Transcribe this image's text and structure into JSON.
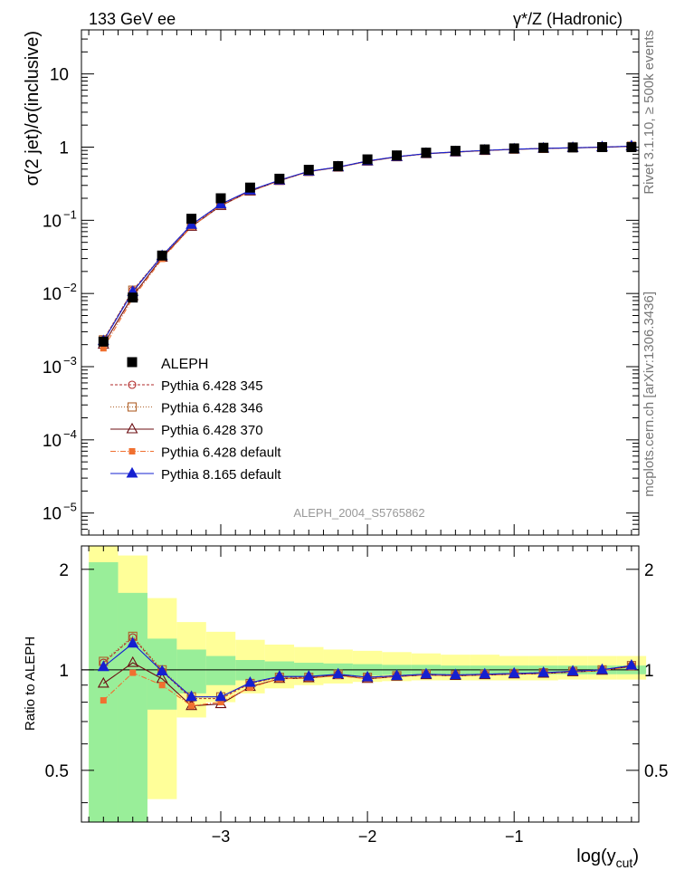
{
  "chart_data": {
    "type": "line",
    "header_left": "133 GeV ee",
    "header_right": "γ*/Z (Hadronic)",
    "side_label_1": "Rivet 3.1.10, ≥ 500k events",
    "side_label_2": "mcplots.cern.ch [arXiv:1306.3436]",
    "analysis_id": "ALEPH_2004_S5765862",
    "ylabel": "σ(2 jet)/σ(inclusive)",
    "xlabel": "log(y_cut)",
    "xlabel_main": "log(y",
    "xlabel_sub": "cut",
    "xlabel_close": ")",
    "ratio_ylabel": "Ratio to ALEPH",
    "xlim": [
      -3.95,
      -0.15
    ],
    "ylim": [
      5e-06,
      40
    ],
    "ratio_ylim": [
      0.35,
      2.35
    ],
    "x_ticks": [
      -3,
      -2,
      -1
    ],
    "x_tick_labels": [
      "−3",
      "−2",
      "−1"
    ],
    "y_ticks": [
      {
        "value": 1e-05,
        "base": "10",
        "exp": "−5"
      },
      {
        "value": 0.0001,
        "base": "10",
        "exp": "−4"
      },
      {
        "value": 0.001,
        "base": "10",
        "exp": "−3"
      },
      {
        "value": 0.01,
        "base": "10",
        "exp": "−2"
      },
      {
        "value": 0.1,
        "base": "10",
        "exp": "−1"
      },
      {
        "value": 1,
        "base": "1",
        "exp": ""
      },
      {
        "value": 10,
        "base": "10",
        "exp": ""
      }
    ],
    "ratio_ticks": [
      0.5,
      1,
      2
    ],
    "ratio_tick_labels": [
      "0.5",
      "1",
      "2"
    ],
    "x": [
      -3.8,
      -3.6,
      -3.4,
      -3.2,
      -3.0,
      -2.8,
      -2.6,
      -2.4,
      -2.2,
      -2.0,
      -1.8,
      -1.6,
      -1.4,
      -1.2,
      -1.0,
      -0.8,
      -0.6,
      -0.4,
      -0.2
    ],
    "x_edges": [
      -3.9,
      -3.7,
      -3.5,
      -3.3,
      -3.1,
      -2.9,
      -2.7,
      -2.5,
      -2.3,
      -2.1,
      -1.9,
      -1.7,
      -1.5,
      -1.3,
      -1.1,
      -0.9,
      -0.7,
      -0.5,
      -0.3,
      -0.1
    ],
    "data": {
      "name": "ALEPH",
      "values": [
        0.0022,
        0.0088,
        0.033,
        0.105,
        0.2,
        0.28,
        0.37,
        0.49,
        0.55,
        0.68,
        0.77,
        0.84,
        0.89,
        0.93,
        0.96,
        0.98,
        0.99,
        1.0,
        1.0
      ],
      "band_inner": [
        [
          0.0,
          2.1
        ],
        [
          0.3,
          1.7
        ],
        [
          0.76,
          1.24
        ],
        [
          0.85,
          1.15
        ],
        [
          0.9,
          1.1
        ],
        [
          0.93,
          1.07
        ],
        [
          0.94,
          1.06
        ],
        [
          0.95,
          1.05
        ],
        [
          0.955,
          1.045
        ],
        [
          0.96,
          1.04
        ],
        [
          0.965,
          1.035
        ],
        [
          0.965,
          1.035
        ],
        [
          0.97,
          1.03
        ],
        [
          0.97,
          1.03
        ],
        [
          0.97,
          1.03
        ],
        [
          0.97,
          1.03
        ],
        [
          0.97,
          1.03
        ],
        [
          0.97,
          1.03
        ],
        [
          0.97,
          1.03
        ]
      ],
      "band_outer": [
        [
          0.0,
          2.35
        ],
        [
          0.0,
          2.2
        ],
        [
          0.41,
          1.64
        ],
        [
          0.72,
          1.39
        ],
        [
          0.8,
          1.3
        ],
        [
          0.85,
          1.23
        ],
        [
          0.88,
          1.19
        ],
        [
          0.9,
          1.17
        ],
        [
          0.91,
          1.15
        ],
        [
          0.92,
          1.14
        ],
        [
          0.925,
          1.13
        ],
        [
          0.93,
          1.12
        ],
        [
          0.93,
          1.11
        ],
        [
          0.93,
          1.11
        ],
        [
          0.93,
          1.1
        ],
        [
          0.93,
          1.1
        ],
        [
          0.935,
          1.1
        ],
        [
          0.935,
          1.1
        ],
        [
          0.935,
          1.1
        ]
      ]
    },
    "series": [
      {
        "name": "Pythia 6.428 345",
        "color": "#b22a2a",
        "marker": "open-circle",
        "dash": "3,2",
        "ratio": [
          1.05,
          1.25,
          0.99,
          0.82,
          0.82,
          0.91,
          0.95,
          0.95,
          0.97,
          0.95,
          0.96,
          0.97,
          0.965,
          0.97,
          0.975,
          0.98,
          0.99,
          1.0,
          1.03
        ]
      },
      {
        "name": "Pythia 6.428 346",
        "color": "#b0622a",
        "marker": "open-square",
        "dash": "1,2",
        "ratio": [
          1.06,
          1.26,
          1.0,
          0.83,
          0.83,
          0.91,
          0.95,
          0.95,
          0.97,
          0.95,
          0.96,
          0.97,
          0.965,
          0.97,
          0.975,
          0.98,
          0.99,
          1.0,
          1.03
        ]
      },
      {
        "name": "Pythia 6.428 370",
        "color": "#6b0d12",
        "marker": "open-triangle",
        "dash": "",
        "ratio": [
          0.91,
          1.05,
          0.94,
          0.78,
          0.79,
          0.89,
          0.94,
          0.945,
          0.965,
          0.94,
          0.955,
          0.965,
          0.96,
          0.965,
          0.97,
          0.975,
          0.985,
          0.995,
          1.025
        ]
      },
      {
        "name": "Pythia 6.428 default",
        "color": "#f07030",
        "marker": "filled-square",
        "dash": "6,2,1,2",
        "ratio": [
          0.81,
          0.98,
          0.9,
          0.78,
          0.8,
          0.885,
          0.94,
          0.945,
          0.96,
          0.94,
          0.955,
          0.965,
          0.96,
          0.965,
          0.97,
          0.975,
          0.985,
          0.995,
          1.02
        ]
      },
      {
        "name": "Pythia 8.165 default",
        "color": "#1520d0",
        "marker": "filled-triangle",
        "dash": "",
        "ratio": [
          1.02,
          1.2,
          0.99,
          0.83,
          0.83,
          0.915,
          0.955,
          0.955,
          0.97,
          0.95,
          0.96,
          0.97,
          0.965,
          0.97,
          0.975,
          0.98,
          0.99,
          1.0,
          1.03
        ]
      }
    ]
  }
}
